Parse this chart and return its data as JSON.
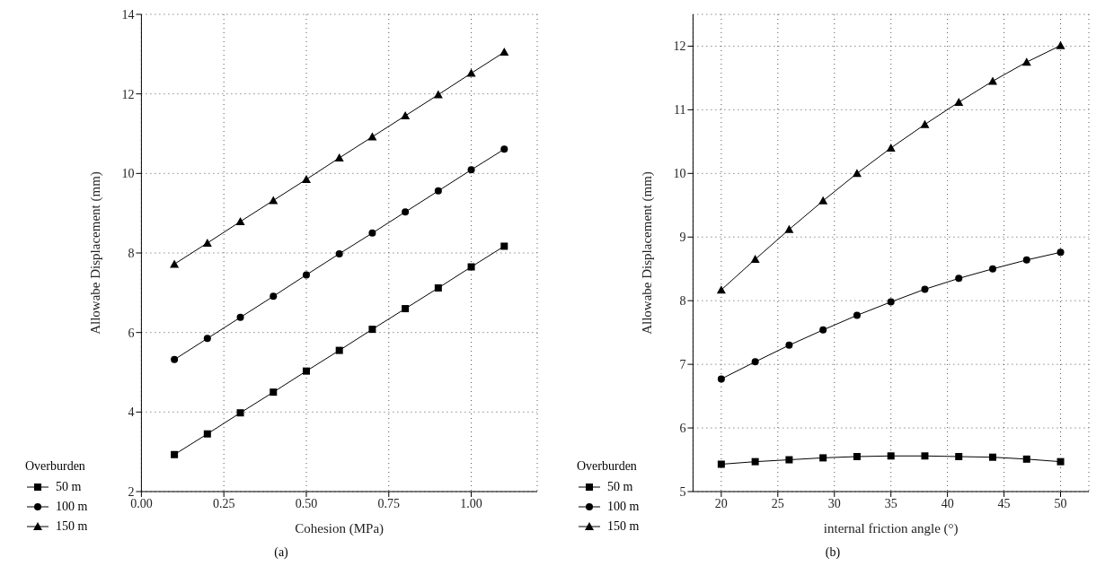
{
  "chart_data": [
    {
      "type": "line",
      "xlabel": "Cohesion (MPa)",
      "ylabel": "Allowabe Displacement (mm)",
      "legend_title": "Overburden",
      "legend": "bottom left",
      "grid": true,
      "line_style": "solid",
      "annotations": [
        "(a)"
      ],
      "x": [
        0.1,
        0.2,
        0.3,
        0.4,
        0.5,
        0.6,
        0.7,
        0.8,
        0.9,
        1.0,
        1.1
      ],
      "xlim": [
        0,
        1.2
      ],
      "xticks": [
        {
          "value": 0,
          "label": "0.00"
        },
        {
          "value": 0.25,
          "label": "0.25"
        },
        {
          "value": 0.5,
          "label": "0.50"
        },
        {
          "value": 0.75,
          "label": "0.75"
        },
        {
          "value": 1,
          "label": "1.00"
        }
      ],
      "ylim": [
        2,
        14
      ],
      "yticks": [
        2,
        4,
        6,
        8,
        10,
        12,
        14
      ],
      "series": [
        {
          "name": "50 m",
          "color": "#000000",
          "marker": "square",
          "values": [
            2.93,
            3.45,
            3.98,
            4.5,
            5.03,
            5.55,
            6.08,
            6.6,
            7.12,
            7.65,
            8.17
          ]
        },
        {
          "name": "100 m",
          "color": "#000000",
          "marker": "circle",
          "values": [
            5.32,
            5.85,
            6.38,
            6.91,
            7.45,
            7.98,
            8.5,
            9.03,
            9.56,
            10.09,
            10.61
          ]
        },
        {
          "name": "150 m",
          "color": "#000000",
          "marker": "triangle",
          "values": [
            7.72,
            8.25,
            8.79,
            9.32,
            9.85,
            10.39,
            10.92,
            11.45,
            11.98,
            12.52,
            13.05
          ]
        }
      ]
    },
    {
      "type": "line",
      "xlabel": "internal friction angle (°)",
      "ylabel": "Allowabe Displacement (mm)",
      "legend_title": "Overburden",
      "legend": "bottom left",
      "grid": true,
      "line_style": "solid",
      "annotations": [
        "(b)"
      ],
      "x": [
        20,
        23,
        26,
        29,
        32,
        35,
        38,
        41,
        44,
        47,
        50
      ],
      "xlim": [
        17.5,
        52.5
      ],
      "xticks": [
        20,
        25,
        30,
        35,
        40,
        45,
        50
      ],
      "ylim": [
        5,
        12.5
      ],
      "yticks": [
        5,
        6,
        7,
        8,
        9,
        10,
        11,
        12
      ],
      "series": [
        {
          "name": "50 m",
          "color": "#000000",
          "marker": "square",
          "values": [
            5.43,
            5.47,
            5.5,
            5.53,
            5.55,
            5.56,
            5.56,
            5.55,
            5.54,
            5.51,
            5.47
          ]
        },
        {
          "name": "100 m",
          "color": "#000000",
          "marker": "circle",
          "values": [
            6.77,
            7.04,
            7.3,
            7.54,
            7.77,
            7.98,
            8.18,
            8.35,
            8.5,
            8.64,
            8.76
          ]
        },
        {
          "name": "150 m",
          "color": "#000000",
          "marker": "triangle",
          "values": [
            8.17,
            8.65,
            9.12,
            9.57,
            10.0,
            10.4,
            10.77,
            11.12,
            11.45,
            11.75,
            12.01
          ]
        }
      ]
    }
  ]
}
